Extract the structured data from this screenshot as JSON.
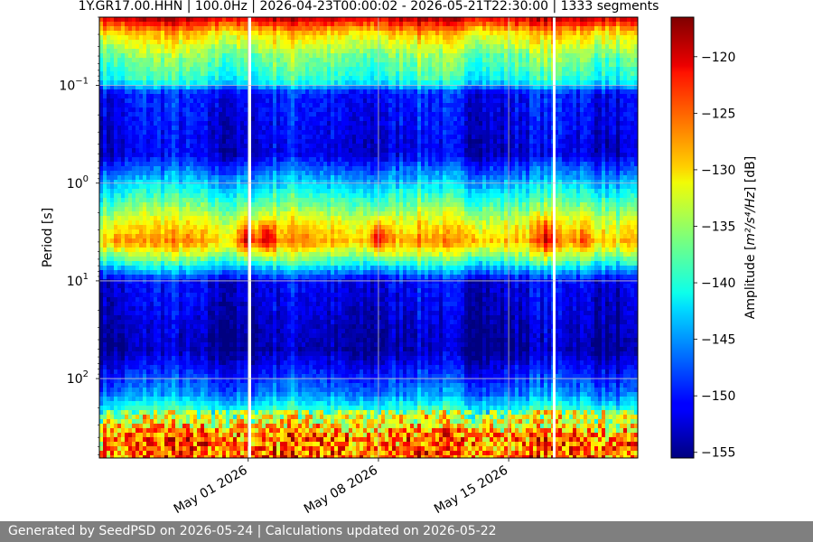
{
  "chart_data": {
    "type": "heatmap",
    "title": "1Y.GR17.00.HHN | 100.0Hz | 2026-04-23T00:00:02 - 2026-05-21T22:30:00 | 1333 segments",
    "xlabel": "",
    "ylabel": "Period [s]",
    "x_range": [
      "2026-04-23",
      "2026-05-21"
    ],
    "x_ticks": [
      {
        "date": "2026-05-01",
        "label": "May 01 2026"
      },
      {
        "date": "2026-05-08",
        "label": "May 08 2026"
      },
      {
        "date": "2026-05-15",
        "label": "May 15 2026"
      }
    ],
    "y_scale": "log",
    "y_inverted": true,
    "y_range": [
      0.02,
      650
    ],
    "y_ticks": [
      {
        "value": 0.1,
        "base": "10",
        "exp": "−1"
      },
      {
        "value": 1,
        "base": "10",
        "exp": "0"
      },
      {
        "value": 10,
        "base": "10",
        "exp": "1"
      },
      {
        "value": 100,
        "base": "10",
        "exp": "2"
      }
    ],
    "grid": true,
    "colormap": "jet",
    "colorbar": {
      "label_prefix": "Amplitude [",
      "label_units": "m²/s⁴/Hz",
      "label_suffix": "] [dB]",
      "range": [
        -155.5,
        -116.5
      ],
      "ticks": [
        -120,
        -125,
        -130,
        -135,
        -140,
        -145,
        -150,
        -155
      ],
      "tick_labels": [
        "−120",
        "−125",
        "−130",
        "−135",
        "−140",
        "−145",
        "−150",
        "−155"
      ]
    },
    "amplitude_profile_db": [
      {
        "period": 0.02,
        "db": -119
      },
      {
        "period": 0.03,
        "db": -130
      },
      {
        "period": 0.05,
        "db": -136
      },
      {
        "period": 0.09,
        "db": -140
      },
      {
        "period": 0.12,
        "db": -150
      },
      {
        "period": 0.5,
        "db": -152
      },
      {
        "period": 1.0,
        "db": -143
      },
      {
        "period": 2.5,
        "db": -132
      },
      {
        "period": 4.0,
        "db": -128
      },
      {
        "period": 6.0,
        "db": -137
      },
      {
        "period": 10.0,
        "db": -151
      },
      {
        "period": 50.0,
        "db": -154
      },
      {
        "period": 140.0,
        "db": -146
      },
      {
        "period": 250.0,
        "db": -136
      },
      {
        "period": 400.0,
        "db": -128
      }
    ],
    "microseism_peaks": [
      {
        "date": "2026-04-24",
        "db": -126
      },
      {
        "date": "2026-05-01",
        "db": -118
      },
      {
        "date": "2026-05-02",
        "db": -119
      },
      {
        "date": "2026-05-04",
        "db": -126
      },
      {
        "date": "2026-05-08",
        "db": -119
      },
      {
        "date": "2026-05-13",
        "db": -125
      },
      {
        "date": "2026-05-17",
        "db": -121
      },
      {
        "date": "2026-05-19",
        "db": -125
      }
    ]
  },
  "footer": {
    "text": "Generated by SeedPSD on 2026-05-24 | Calculations updated on 2026-05-22"
  }
}
